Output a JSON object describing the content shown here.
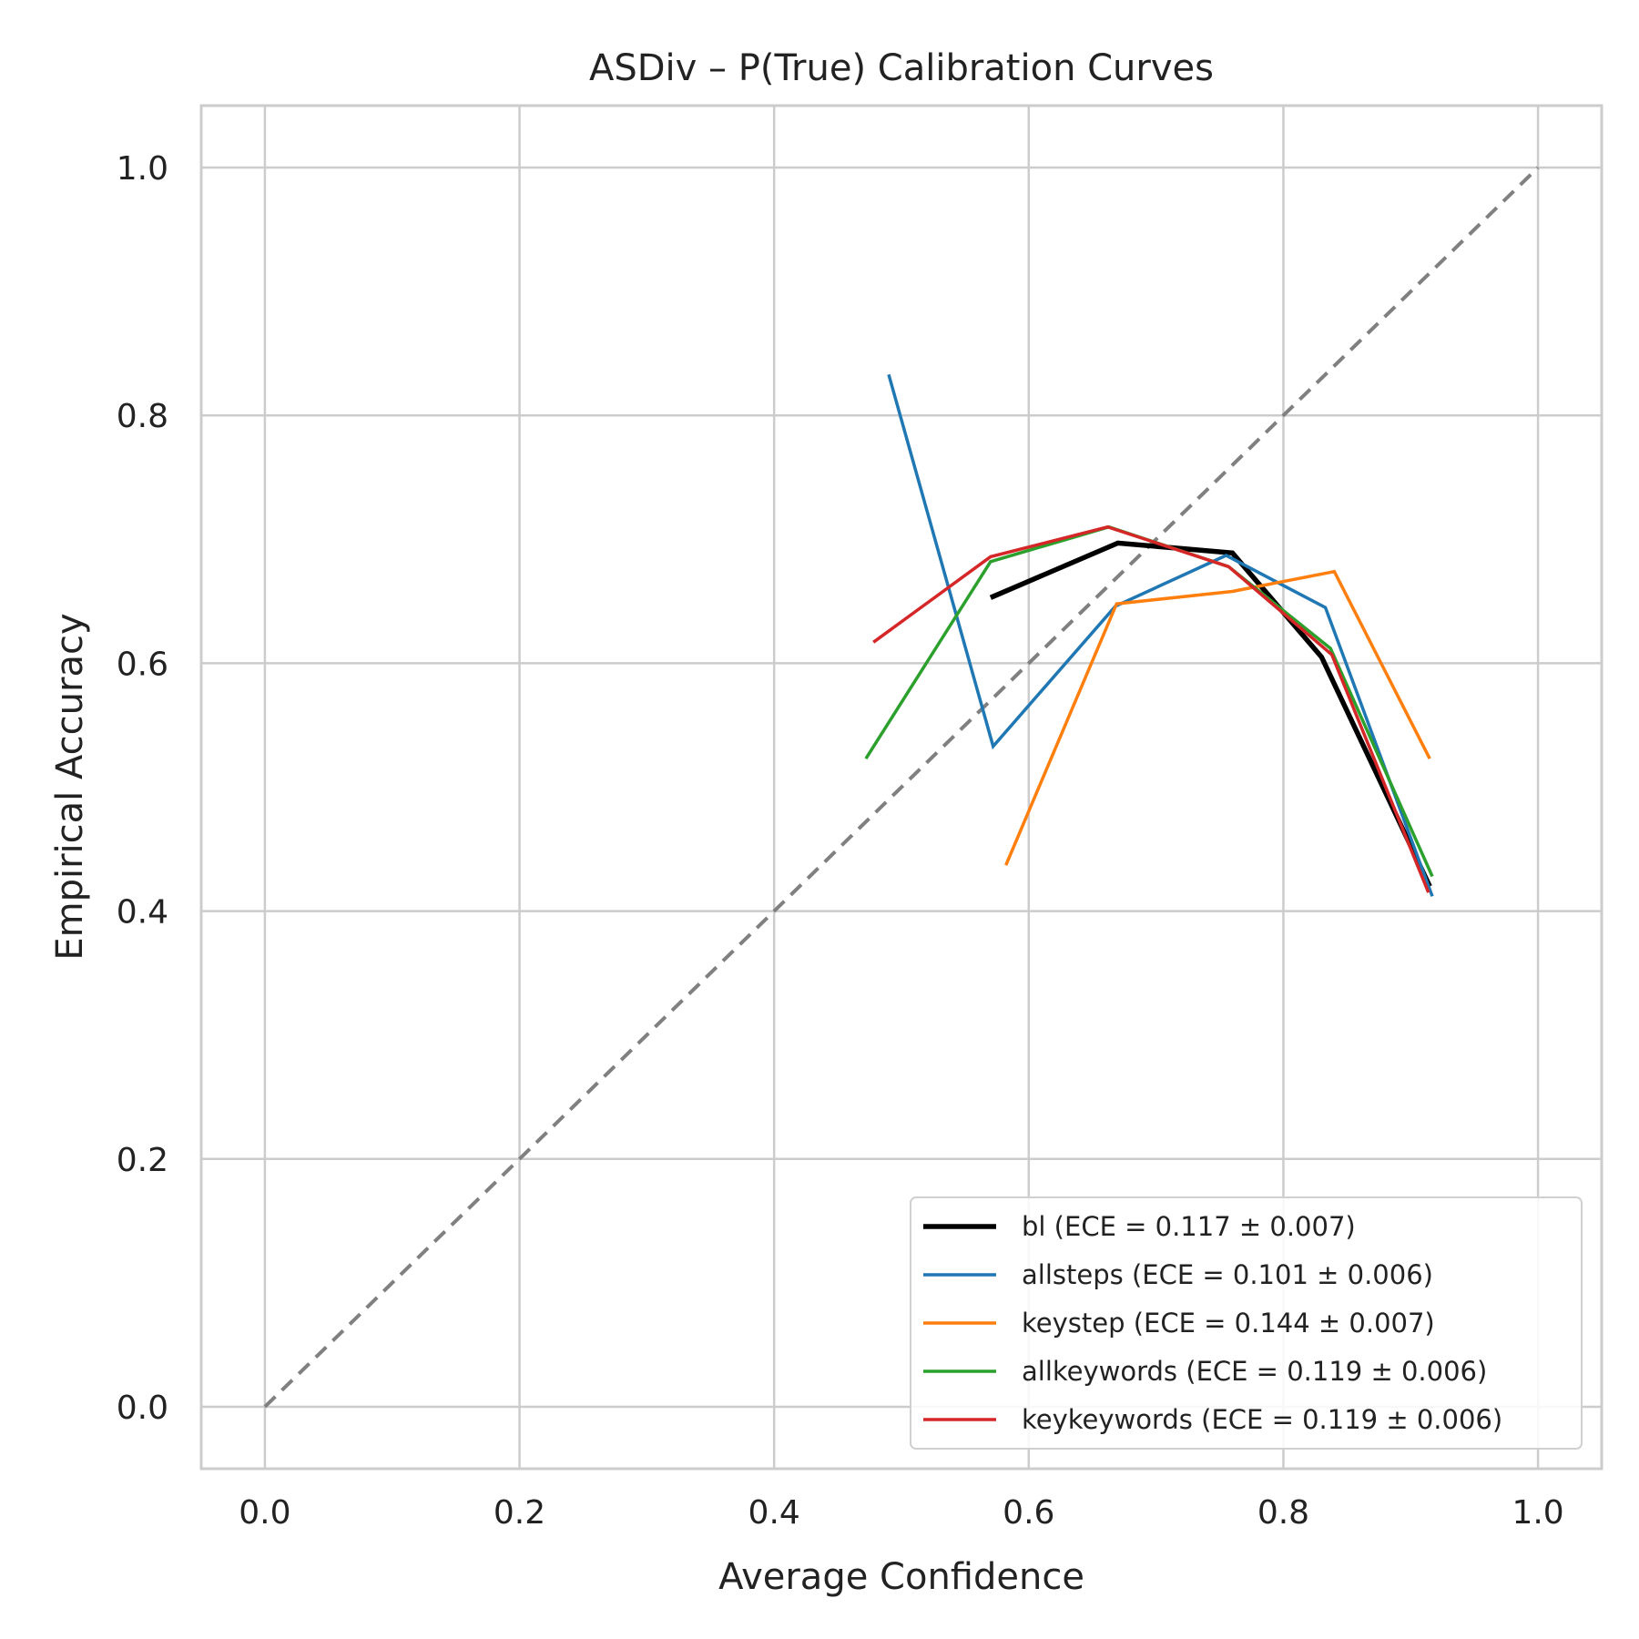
{
  "chart_data": {
    "type": "line",
    "title": "ASDiv – P(True) Calibration Curves",
    "xlabel": "Average Confidence",
    "ylabel": "Empirical Accuracy",
    "xlim": [
      -0.05,
      1.05
    ],
    "ylim": [
      -0.05,
      1.05
    ],
    "xticks": [
      "0.0",
      "0.2",
      "0.4",
      "0.6",
      "0.8",
      "1.0"
    ],
    "yticks": [
      "0.0",
      "0.2",
      "0.4",
      "0.6",
      "0.8",
      "1.0"
    ],
    "grid": true,
    "legend_position": "lower-right",
    "reference_line": {
      "x": [
        0,
        1
      ],
      "y": [
        0,
        1
      ],
      "color": "#808080",
      "style": "dashed"
    },
    "series": [
      {
        "name": "bl (ECE = 0.117 ± 0.007)",
        "color": "#000000",
        "width": 5.5,
        "x": [
          0.57,
          0.67,
          0.76,
          0.83,
          0.915
        ],
        "y": [
          0.653,
          0.697,
          0.689,
          0.605,
          0.42
        ]
      },
      {
        "name": "allsteps (ECE = 0.101 ± 0.006)",
        "color": "#1f77b4",
        "width": 3.5,
        "x": [
          0.49,
          0.572,
          0.668,
          0.755,
          0.833,
          0.917
        ],
        "y": [
          0.833,
          0.533,
          0.646,
          0.687,
          0.645,
          0.412
        ]
      },
      {
        "name": "keystep (ECE = 0.144 ± 0.007)",
        "color": "#ff7f0e",
        "width": 3.5,
        "x": [
          0.582,
          0.669,
          0.76,
          0.84,
          0.915
        ],
        "y": [
          0.437,
          0.648,
          0.658,
          0.674,
          0.523
        ]
      },
      {
        "name": "allkeywords (ECE = 0.119 ± 0.006)",
        "color": "#2ca02c",
        "width": 3.5,
        "x": [
          0.472,
          0.57,
          0.663,
          0.757,
          0.837,
          0.917
        ],
        "y": [
          0.523,
          0.682,
          0.71,
          0.678,
          0.612,
          0.428
        ]
      },
      {
        "name": "keykeywords (ECE = 0.119 ± 0.006)",
        "color": "#d62728",
        "width": 3.5,
        "x": [
          0.478,
          0.57,
          0.662,
          0.757,
          0.838,
          0.914
        ],
        "y": [
          0.617,
          0.686,
          0.71,
          0.678,
          0.607,
          0.415
        ]
      }
    ]
  }
}
